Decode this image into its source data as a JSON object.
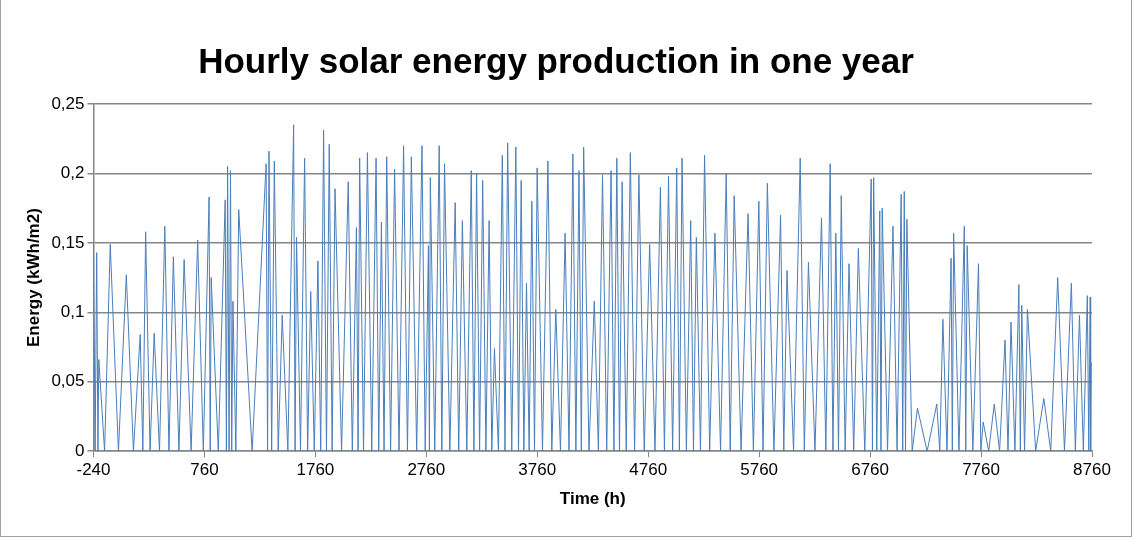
{
  "chart_data": {
    "type": "line",
    "title": "Hourly solar energy production in one year",
    "xlabel": "Time (h)",
    "ylabel": "Energy (kWh/m2)",
    "xlim": [
      -240,
      8760
    ],
    "xticks": [
      -240,
      760,
      1760,
      2760,
      3760,
      4760,
      5760,
      6760,
      7760,
      8760
    ],
    "ylim": [
      0,
      0.25
    ],
    "yticks": [
      0,
      {
        "value": 0.05,
        "label": "0,05"
      },
      {
        "value": 0.1,
        "label": "0,1"
      },
      {
        "value": 0.15,
        "label": "0,15"
      },
      {
        "value": 0.2,
        "label": "0,2"
      },
      {
        "value": 0.25,
        "label": "0,25"
      }
    ],
    "grid": "y",
    "legend": false,
    "marker": "none",
    "line_style": "solid",
    "series": [
      {
        "color": "#4a7ebb",
        "x": [
          -240,
          -225,
          -211,
          -200,
          -192,
          -140,
          -89,
          -15,
          56,
          120,
          181,
          205,
          230,
          270,
          307,
          355,
          403,
          440,
          480,
          530,
          577,
          640,
          699,
          750,
          802,
          812,
          821,
          885,
          947,
          958,
          969,
          982,
          995,
          1006,
          1017,
          1043,
          1069,
          1190,
          1316,
          1329,
          1342,
          1366,
          1390,
          1425,
          1461,
          1512,
          1564,
          1577,
          1590,
          1626,
          1663,
          1690,
          1718,
          1750,
          1783,
          1808,
          1834,
          1860,
          1885,
          1911,
          1937,
          1996,
          2056,
          2093,
          2130,
          2145,
          2159,
          2194,
          2229,
          2268,
          2307,
          2331,
          2355,
          2379,
          2403,
          2438,
          2474,
          2514,
          2555,
          2590,
          2625,
          2673,
          2721,
          2750,
          2779,
          2788,
          2796,
          2836,
          2876,
          2900,
          2924,
          2972,
          3020,
          3052,
          3085,
          3125,
          3165,
          3189,
          3213,
          3240,
          3268,
          3297,
          3326,
          3350,
          3374,
          3410,
          3445,
          3469,
          3493,
          3530,
          3567,
          3591,
          3615,
          3639,
          3663,
          3687,
          3711,
          3735,
          3759,
          3807,
          3856,
          3891,
          3927,
          3969,
          4011,
          4046,
          4081,
          4108,
          4136,
          4157,
          4178,
          4226,
          4274,
          4311,
          4348,
          4386,
          4425,
          4451,
          4477,
          4501,
          4525,
          4562,
          4599,
          4637,
          4676,
          4724,
          4773,
          4821,
          4870,
          4906,
          4943,
          4980,
          5017,
          5041,
          5065,
          5104,
          5143,
          5168,
          5194,
          5231,
          5268,
          5314,
          5361,
          5412,
          5463,
          5499,
          5535,
          5597,
          5660,
          5708,
          5757,
          5795,
          5834,
          5893,
          5953,
          5982,
          6011,
          6070,
          6130,
          6167,
          6204,
          6263,
          6322,
          6361,
          6400,
          6425,
          6451,
          6475,
          6500,
          6535,
          6570,
          6612,
          6654,
          6712,
          6770,
          6781,
          6792,
          6820,
          6847,
          6858,
          6869,
          6917,
          6966,
          7003,
          7040,
          7054,
          7068,
          7079,
          7091,
          7139,
          7187,
          7274,
          7361,
          7388,
          7416,
          7453,
          7490,
          7501,
          7513,
          7561,
          7609,
          7622,
          7635,
          7686,
          7737,
          7758,
          7779,
          7829,
          7879,
          7927,
          7976,
          8003,
          8030,
          8065,
          8101,
          8114,
          8127,
          8152,
          8178,
          8252,
          8326,
          8388,
          8451,
          8512,
          8574,
          8610,
          8647,
          8682,
          8718,
          8731,
          8744,
          8748,
          8753
        ],
        "values": [
          0.149,
          0,
          0.143,
          0,
          0.066,
          0,
          0.149,
          0,
          0.127,
          0,
          0.084,
          0,
          0.158,
          0,
          0.085,
          0,
          0.162,
          0,
          0.14,
          0,
          0.138,
          0,
          0.152,
          0,
          0.183,
          0,
          0.125,
          0,
          0.181,
          0,
          0.205,
          0,
          0.202,
          0,
          0.108,
          0,
          0.174,
          0,
          0.207,
          0,
          0.216,
          0,
          0.209,
          0,
          0.098,
          0,
          0.235,
          0,
          0.154,
          0,
          0.211,
          0,
          0.115,
          0,
          0.137,
          0,
          0.231,
          0,
          0.221,
          0,
          0.189,
          0,
          0.194,
          0,
          0.161,
          0,
          0.211,
          0,
          0.215,
          0,
          0.211,
          0,
          0.165,
          0,
          0.212,
          0,
          0.203,
          0,
          0.22,
          0,
          0.212,
          0,
          0.22,
          0,
          0.148,
          0,
          0.197,
          0,
          0.22,
          0,
          0.207,
          0,
          0.179,
          0,
          0.166,
          0,
          0.202,
          0,
          0.2,
          0,
          0.195,
          0,
          0.166,
          0,
          0.074,
          0,
          0.213,
          0,
          0.222,
          0,
          0.219,
          0,
          0.195,
          0,
          0.121,
          0,
          0.18,
          0,
          0.204,
          0,
          0.209,
          0,
          0.102,
          0,
          0.157,
          0,
          0.214,
          0,
          0.202,
          0,
          0.219,
          0,
          0.108,
          0,
          0.199,
          0,
          0.202,
          0,
          0.211,
          0,
          0.194,
          0,
          0.215,
          0,
          0.199,
          0,
          0.149,
          0,
          0.19,
          0,
          0.198,
          0,
          0.204,
          0,
          0.211,
          0,
          0.166,
          0,
          0.154,
          0,
          0.213,
          0,
          0.157,
          0,
          0.2,
          0,
          0.184,
          0,
          0.171,
          0,
          0.18,
          0,
          0.193,
          0,
          0.17,
          0,
          0.13,
          0,
          0.211,
          0,
          0.136,
          0,
          0.168,
          0,
          0.207,
          0,
          0.157,
          0,
          0.184,
          0,
          0.135,
          0,
          0.146,
          0,
          0.196,
          0,
          0.197,
          0,
          0.173,
          0,
          0.175,
          0,
          0.162,
          0,
          0.185,
          0,
          0.187,
          0,
          0.167,
          0,
          0.031,
          0,
          0.034,
          0,
          0.095,
          0,
          0.139,
          0,
          0.157,
          0,
          0.162,
          0,
          0.148,
          0,
          0.135,
          0,
          0.021,
          0,
          0.034,
          0,
          0.08,
          0,
          0.093,
          0,
          0.12,
          0,
          0.105,
          0,
          0.102,
          0,
          0.038,
          0,
          0.125,
          0,
          0.121,
          0,
          0.098,
          0,
          0.112,
          0,
          0.111,
          0,
          0.064
        ]
      }
    ]
  }
}
